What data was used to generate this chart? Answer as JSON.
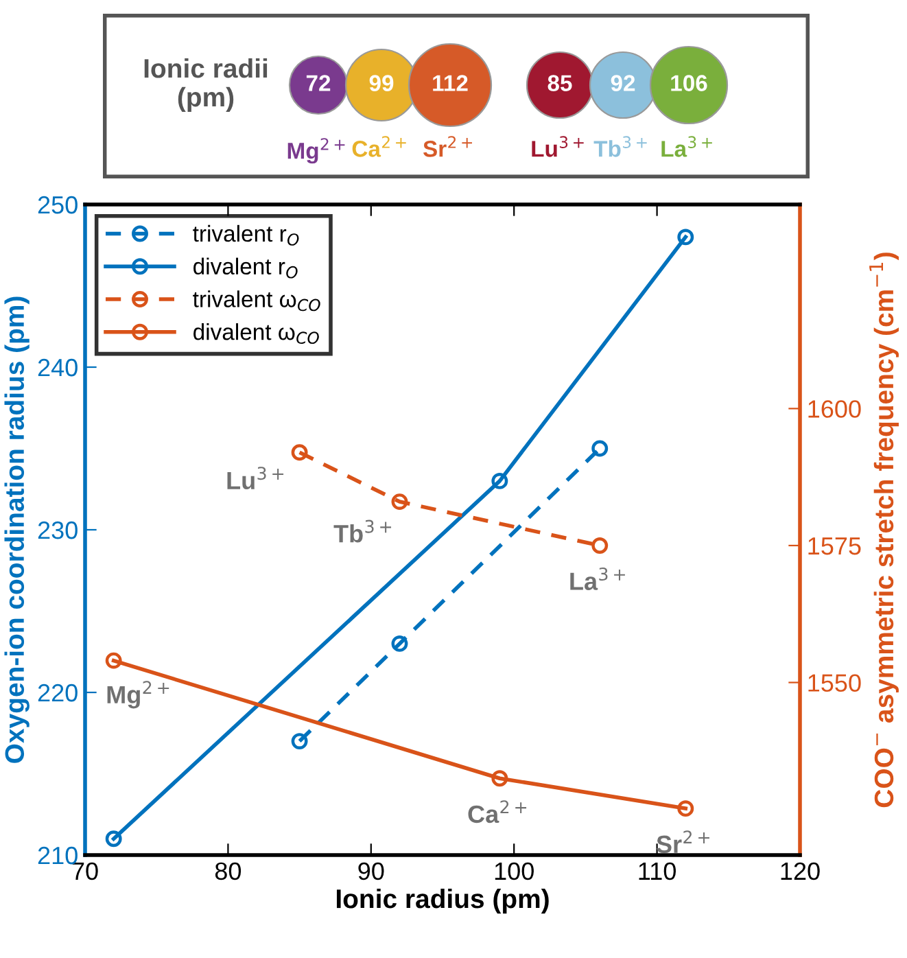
{
  "chart_data": {
    "type": "line",
    "xlabel": "Ionic radius (pm)",
    "ylabel": "Oxygen-ion coordination radius (pm)",
    "y2label": "COO$^{−}$ asymmetric stretch frequency (cm$^{−1}$)",
    "xlim": [
      70,
      120
    ],
    "xticks": [
      70,
      80,
      90,
      100,
      110,
      120
    ],
    "ylim": [
      210,
      250
    ],
    "yticks": [
      210,
      220,
      230,
      240,
      250
    ],
    "y2lim": [
      1518.5,
      1637.25
    ],
    "y2ticks": [
      1550,
      1575,
      1600
    ],
    "marker": "circle",
    "grid": false,
    "legend": "top left",
    "series": [
      {
        "name": "trivalent r$_{O}$",
        "color": "#0072bd",
        "x": [
          85,
          92,
          106
        ],
        "values": [
          217,
          223,
          235
        ],
        "line_style": "dashed"
      },
      {
        "name": "divalent r$_{O}$",
        "color": "#0072bd",
        "x": [
          72,
          99,
          112
        ],
        "values": [
          211,
          233,
          248
        ],
        "line_style": "solid"
      },
      {
        "name": "trivalent ω$_{CO}$",
        "color": "#d95319",
        "x": [
          85,
          92,
          106
        ],
        "values": [
          1592,
          1583,
          1575
        ],
        "line_style": "dashed",
        "axis": "y2"
      },
      {
        "name": "divalent ω$_{CO}$",
        "color": "#d95319",
        "x": [
          72,
          99,
          112
        ],
        "values": [
          1554,
          1532.5,
          1527
        ],
        "line_style": "solid",
        "axis": "y2"
      }
    ],
    "annotations": [
      "Ionic radii\n(pm)",
      "72",
      "99",
      "112",
      "85",
      "92",
      "106",
      "Mg$^{2+}$",
      "Ca$^{2+}$",
      "Sr$^{2+}$",
      "Lu$^{3+}$",
      "Tb$^{3+}$",
      "La$^{3+}$",
      "Lu$^{3+}$",
      "Tb$^{3+}$",
      "La$^{3+}$",
      "Mg$^{2+}$",
      "Ca$^{2+}$",
      "Sr$^{2+}$"
    ]
  }
}
